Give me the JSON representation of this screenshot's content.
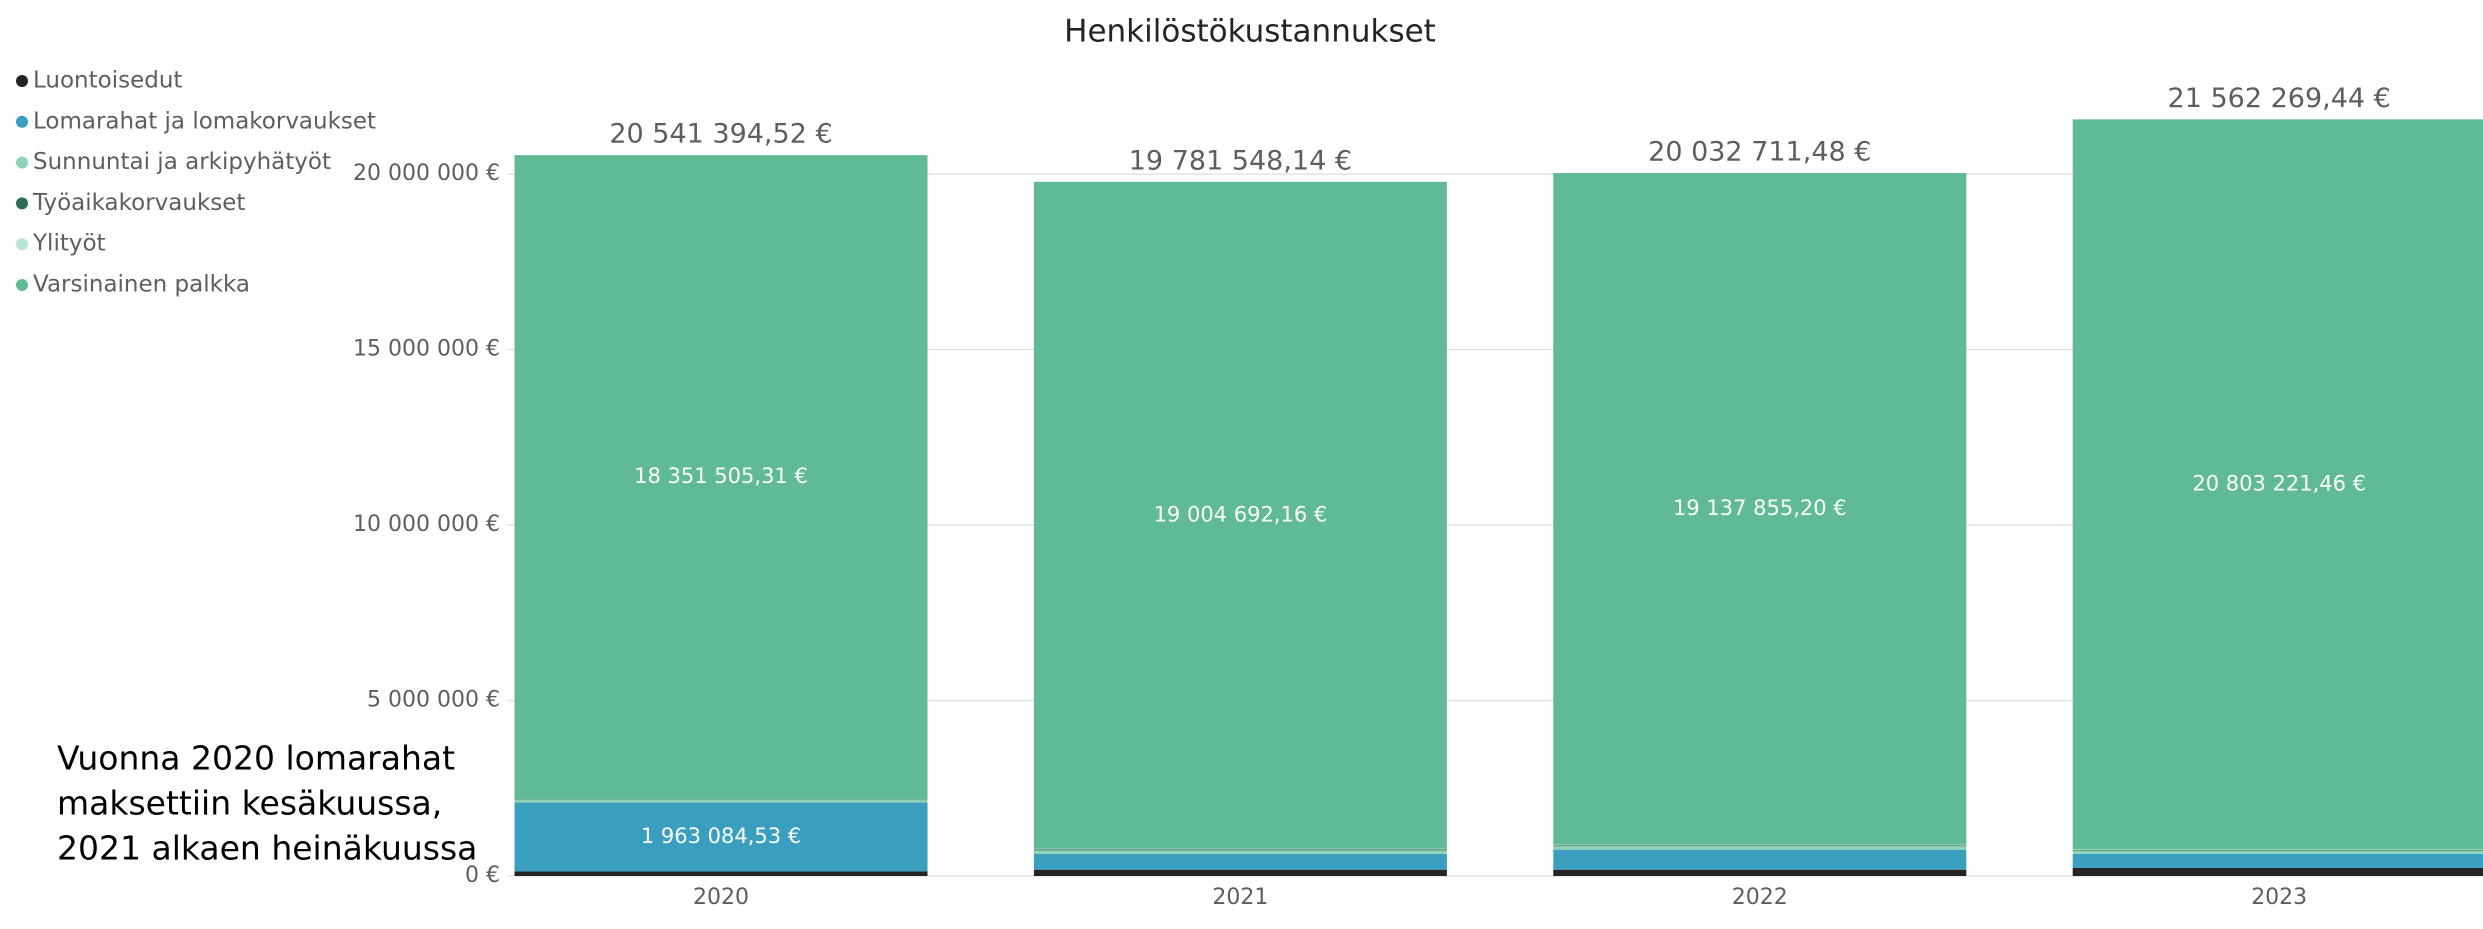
{
  "chart_data": {
    "type": "stacked_bar",
    "title": "Henkilöstökustannukset",
    "categories": [
      "2020",
      "2021",
      "2022",
      "2023"
    ],
    "series": [
      {
        "name": "Luontoisedut",
        "color": "#252423",
        "values": [
          130000,
          180000,
          180000,
          230000
        ]
      },
      {
        "name": "Lomarahat ja lomakorvaukset",
        "color": "#3a9fbf",
        "values": [
          1963084.53,
          450000,
          570000,
          400000
        ],
        "value_labels": [
          "1 963 084,53 €",
          null,
          null,
          null
        ]
      },
      {
        "name": "Sunnuntai ja arkipyhätyöt",
        "color": "#8fd3b8",
        "values": [
          70000,
          100000,
          100000,
          90000
        ]
      },
      {
        "name": "Työaikakorvaukset",
        "color": "#2f6b55",
        "values": [
          15000,
          25000,
          25000,
          20000
        ]
      },
      {
        "name": "Ylityöt",
        "color": "#b7e4d1",
        "values": [
          11804.68,
          21855.98,
          19856.28,
          19047.98
        ]
      },
      {
        "name": "Varsinainen palkka",
        "color": "#5fba95",
        "values": [
          18351505.31,
          19004692.16,
          19137855.2,
          20803221.46
        ],
        "value_labels": [
          "18 351 505,31 €",
          "19 004 692,16 €",
          "19 137 855,20 €",
          "20 803 221,46 €"
        ]
      }
    ],
    "totals": [
      20541394.52,
      19781548.14,
      20032711.48,
      21562269.44
    ],
    "total_labels": [
      "20 541 394,52 €",
      "19 781 548,14 €",
      "20 032 711,48 €",
      "21 562 269,44 €"
    ],
    "ylim": [
      0,
      22000000
    ],
    "yticks": [
      {
        "value": 0,
        "label": "0 €"
      },
      {
        "value": 5000000,
        "label": "5 000 000 €"
      },
      {
        "value": 10000000,
        "label": "10 000 000 €"
      },
      {
        "value": 15000000,
        "label": "15 000 000 €"
      },
      {
        "value": 20000000,
        "label": "20 000 000 €"
      }
    ],
    "grid": true,
    "legend": "top-left",
    "annotation": [
      "Vuonna 2020 lomarahat",
      "maksettiin kesäkuussa,",
      "2021 alkaen heinäkuussa"
    ]
  }
}
